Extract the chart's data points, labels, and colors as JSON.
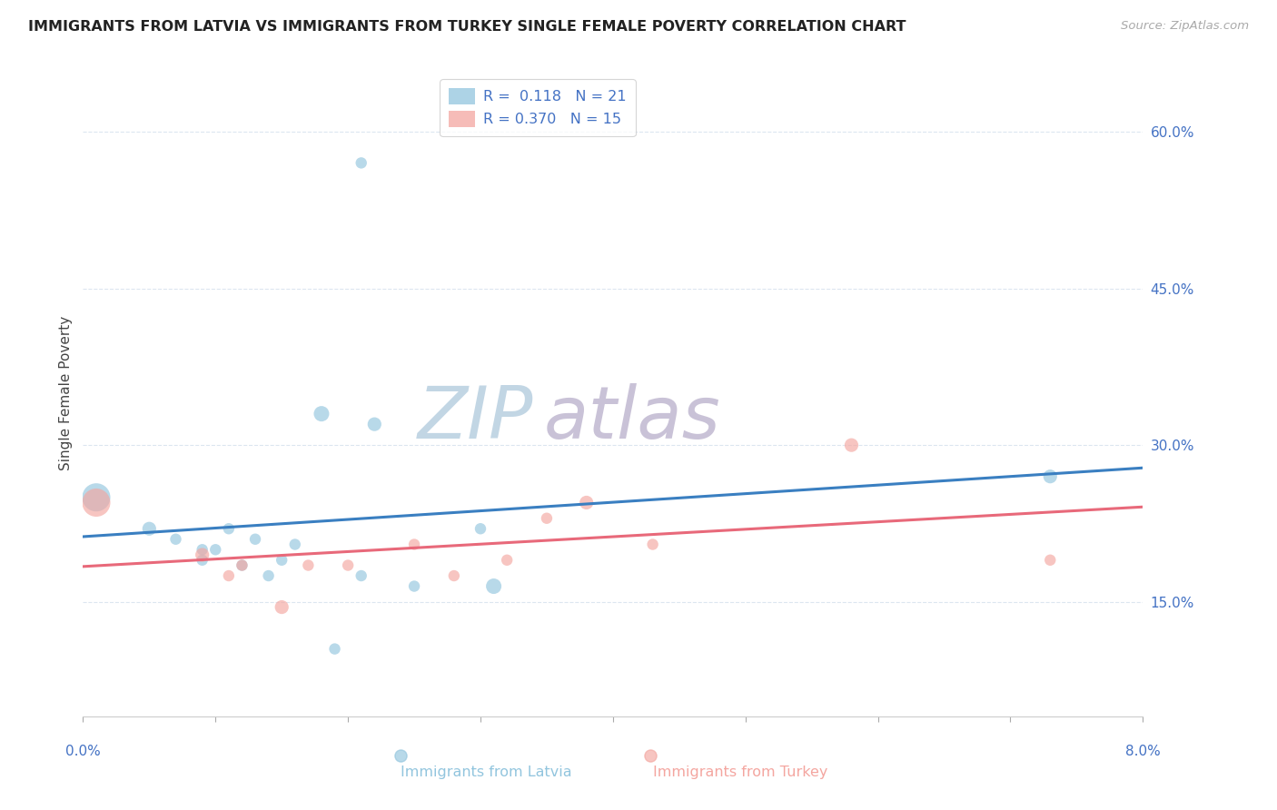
{
  "title": "IMMIGRANTS FROM LATVIA VS IMMIGRANTS FROM TURKEY SINGLE FEMALE POVERTY CORRELATION CHART",
  "source": "Source: ZipAtlas.com",
  "ylabel": "Single Female Poverty",
  "ytick_labels": [
    "15.0%",
    "30.0%",
    "45.0%",
    "60.0%"
  ],
  "ytick_values": [
    0.15,
    0.3,
    0.45,
    0.6
  ],
  "xlim": [
    0.0,
    0.08
  ],
  "ylim": [
    0.04,
    0.66
  ],
  "r1": 0.118,
  "n1": 21,
  "r2": 0.37,
  "n2": 15,
  "color_latvia": "#92c5de",
  "color_turkey": "#f4a6a0",
  "color_latvia_line": "#3a7fc1",
  "color_turkey_line": "#e8697a",
  "watermark_zip_color": "#c5d8eb",
  "watermark_atlas_color": "#c8bfd8",
  "latvia_x": [
    0.001,
    0.005,
    0.007,
    0.009,
    0.009,
    0.01,
    0.011,
    0.012,
    0.013,
    0.014,
    0.015,
    0.016,
    0.018,
    0.019,
    0.021,
    0.022,
    0.025,
    0.03,
    0.031,
    0.073,
    0.021
  ],
  "latvia_y": [
    0.25,
    0.22,
    0.21,
    0.2,
    0.19,
    0.2,
    0.22,
    0.185,
    0.21,
    0.175,
    0.19,
    0.205,
    0.33,
    0.105,
    0.175,
    0.32,
    0.165,
    0.22,
    0.165,
    0.27,
    0.57
  ],
  "latvia_size": [
    500,
    120,
    80,
    80,
    80,
    80,
    80,
    80,
    80,
    80,
    80,
    80,
    150,
    80,
    80,
    120,
    80,
    80,
    150,
    120,
    80
  ],
  "turkey_x": [
    0.001,
    0.009,
    0.011,
    0.012,
    0.015,
    0.017,
    0.02,
    0.025,
    0.028,
    0.032,
    0.035,
    0.038,
    0.043,
    0.058,
    0.073
  ],
  "turkey_y": [
    0.245,
    0.195,
    0.175,
    0.185,
    0.145,
    0.185,
    0.185,
    0.205,
    0.175,
    0.19,
    0.23,
    0.245,
    0.205,
    0.3,
    0.19
  ],
  "turkey_size": [
    500,
    120,
    80,
    80,
    120,
    80,
    80,
    80,
    80,
    80,
    80,
    120,
    80,
    120,
    80
  ],
  "background_color": "#ffffff",
  "grid_color": "#dce6f0",
  "title_fontsize": 11.5,
  "tick_label_color": "#4472c4",
  "legend_text_color_1": "#4472c4",
  "legend_text_color_2": "#e05070"
}
